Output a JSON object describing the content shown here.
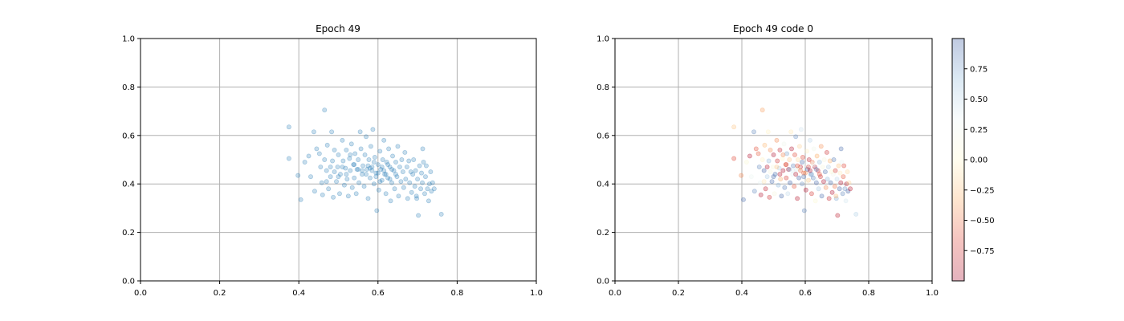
{
  "chart_data": [
    {
      "type": "scatter",
      "title": "Epoch 49",
      "xlim": [
        0,
        1
      ],
      "ylim": [
        0,
        1
      ],
      "xticks": [
        "0.0",
        "0.2",
        "0.4",
        "0.6",
        "0.8",
        "1.0"
      ],
      "yticks": [
        "0.0",
        "0.2",
        "0.4",
        "0.6",
        "0.8",
        "1.0"
      ],
      "grid": true,
      "point_color": "#1f77b4",
      "point_alpha": 0.25,
      "points": [
        [
          0.375,
          0.635
        ],
        [
          0.465,
          0.705
        ],
        [
          0.438,
          0.615
        ],
        [
          0.483,
          0.615
        ],
        [
          0.375,
          0.505
        ],
        [
          0.398,
          0.435
        ],
        [
          0.405,
          0.335
        ],
        [
          0.415,
          0.49
        ],
        [
          0.425,
          0.515
        ],
        [
          0.43,
          0.43
        ],
        [
          0.44,
          0.37
        ],
        [
          0.445,
          0.545
        ],
        [
          0.452,
          0.525
        ],
        [
          0.455,
          0.47
        ],
        [
          0.458,
          0.405
        ],
        [
          0.46,
          0.355
        ],
        [
          0.465,
          0.5
        ],
        [
          0.47,
          0.455
        ],
        [
          0.472,
          0.56
        ],
        [
          0.475,
          0.38
        ],
        [
          0.48,
          0.43
        ],
        [
          0.485,
          0.495
        ],
        [
          0.487,
          0.345
        ],
        [
          0.49,
          0.54
        ],
        [
          0.495,
          0.41
        ],
        [
          0.498,
          0.47
        ],
        [
          0.5,
          0.52
        ],
        [
          0.503,
          0.36
        ],
        [
          0.505,
          0.44
        ],
        [
          0.51,
          0.58
        ],
        [
          0.512,
          0.495
        ],
        [
          0.515,
          0.395
        ],
        [
          0.518,
          0.465
        ],
        [
          0.52,
          0.54
        ],
        [
          0.522,
          0.42
        ],
        [
          0.525,
          0.35
        ],
        [
          0.528,
          0.505
        ],
        [
          0.53,
          0.455
        ],
        [
          0.533,
          0.565
        ],
        [
          0.535,
          0.385
        ],
        [
          0.538,
          0.48
        ],
        [
          0.54,
          0.425
        ],
        [
          0.542,
          0.525
        ],
        [
          0.545,
          0.36
        ],
        [
          0.547,
          0.46
        ],
        [
          0.55,
          0.5
        ],
        [
          0.552,
          0.405
        ],
        [
          0.555,
          0.615
        ],
        [
          0.557,
          0.545
        ],
        [
          0.56,
          0.44
        ],
        [
          0.562,
          0.475
        ],
        [
          0.565,
          0.39
        ],
        [
          0.567,
          0.52
        ],
        [
          0.57,
          0.595
        ],
        [
          0.572,
          0.46
        ],
        [
          0.575,
          0.34
        ],
        [
          0.577,
          0.5
        ],
        [
          0.58,
          0.425
        ],
        [
          0.582,
          0.555
        ],
        [
          0.585,
          0.47
        ],
        [
          0.587,
          0.625
        ],
        [
          0.59,
          0.4
        ],
        [
          0.592,
          0.51
        ],
        [
          0.595,
          0.445
        ],
        [
          0.597,
          0.29
        ],
        [
          0.6,
          0.48
        ],
        [
          0.602,
          0.375
        ],
        [
          0.605,
          0.535
        ],
        [
          0.607,
          0.46
        ],
        [
          0.61,
          0.415
        ],
        [
          0.612,
          0.5
        ],
        [
          0.615,
          0.58
        ],
        [
          0.617,
          0.44
        ],
        [
          0.62,
          0.36
        ],
        [
          0.622,
          0.49
        ],
        [
          0.625,
          0.425
        ],
        [
          0.627,
          0.545
        ],
        [
          0.63,
          0.47
        ],
        [
          0.632,
          0.33
        ],
        [
          0.635,
          0.405
        ],
        [
          0.637,
          0.515
        ],
        [
          0.64,
          0.455
        ],
        [
          0.642,
          0.38
        ],
        [
          0.645,
          0.49
        ],
        [
          0.648,
          0.43
        ],
        [
          0.65,
          0.555
        ],
        [
          0.652,
          0.35
        ],
        [
          0.655,
          0.47
        ],
        [
          0.658,
          0.41
        ],
        [
          0.66,
          0.5
        ],
        [
          0.663,
          0.45
        ],
        [
          0.665,
          0.385
        ],
        [
          0.668,
          0.53
        ],
        [
          0.67,
          0.42
        ],
        [
          0.673,
          0.47
        ],
        [
          0.675,
          0.34
        ],
        [
          0.678,
          0.495
        ],
        [
          0.68,
          0.405
        ],
        [
          0.683,
          0.45
        ],
        [
          0.685,
          0.365
        ],
        [
          0.688,
          0.44
        ],
        [
          0.69,
          0.5
        ],
        [
          0.693,
          0.39
        ],
        [
          0.695,
          0.455
        ],
        [
          0.698,
          0.34
        ],
        [
          0.7,
          0.42
        ],
        [
          0.702,
          0.27
        ],
        [
          0.705,
          0.475
        ],
        [
          0.708,
          0.38
        ],
        [
          0.71,
          0.445
        ],
        [
          0.712,
          0.405
        ],
        [
          0.715,
          0.49
        ],
        [
          0.718,
          0.36
        ],
        [
          0.72,
          0.43
        ],
        [
          0.722,
          0.475
        ],
        [
          0.725,
          0.38
        ],
        [
          0.728,
          0.33
        ],
        [
          0.73,
          0.4
        ],
        [
          0.733,
          0.45
        ],
        [
          0.735,
          0.37
        ],
        [
          0.738,
          0.405
        ],
        [
          0.742,
          0.38
        ],
        [
          0.76,
          0.275
        ],
        [
          0.713,
          0.545
        ],
        [
          0.697,
          0.35
        ],
        [
          0.53,
          0.52
        ],
        [
          0.54,
          0.48
        ],
        [
          0.55,
          0.46
        ],
        [
          0.56,
          0.455
        ],
        [
          0.57,
          0.44
        ],
        [
          0.58,
          0.465
        ],
        [
          0.59,
          0.49
        ],
        [
          0.6,
          0.445
        ],
        [
          0.61,
          0.47
        ],
        [
          0.62,
          0.44
        ],
        [
          0.63,
          0.42
        ],
        [
          0.575,
          0.475
        ],
        [
          0.585,
          0.455
        ],
        [
          0.595,
          0.43
        ],
        [
          0.605,
          0.41
        ],
        [
          0.615,
          0.455
        ],
        [
          0.625,
          0.48
        ],
        [
          0.635,
          0.46
        ],
        [
          0.645,
          0.44
        ],
        [
          0.52,
          0.44
        ],
        [
          0.51,
          0.47
        ],
        [
          0.5,
          0.43
        ],
        [
          0.49,
          0.45
        ],
        [
          0.48,
          0.47
        ],
        [
          0.47,
          0.41
        ]
      ]
    },
    {
      "type": "scatter",
      "title": "Epoch 49 code 0",
      "xlim": [
        0,
        1
      ],
      "ylim": [
        0,
        1
      ],
      "xticks": [
        "0.0",
        "0.2",
        "0.4",
        "0.6",
        "0.8",
        "1.0"
      ],
      "yticks": [
        "0.0",
        "0.2",
        "0.4",
        "0.6",
        "0.8",
        "1.0"
      ],
      "grid": true,
      "point_alpha": 0.3,
      "colormap": "RdYlBu",
      "colorbar": {
        "range": [
          -1,
          1
        ],
        "ticks": [
          0.75,
          0.5,
          0.25,
          0.0,
          -0.25,
          -0.5,
          -0.75
        ],
        "tick_labels": [
          "0.75",
          "0.50",
          "0.25",
          "0.00",
          "−0.25",
          "−0.50",
          "−0.75"
        ],
        "colors": [
          "#2d4e9a",
          "#8ab6da",
          "#e9f4f6",
          "#fff8c8",
          "#fba85d",
          "#dc3a2c",
          "#a50026"
        ]
      }
    }
  ]
}
